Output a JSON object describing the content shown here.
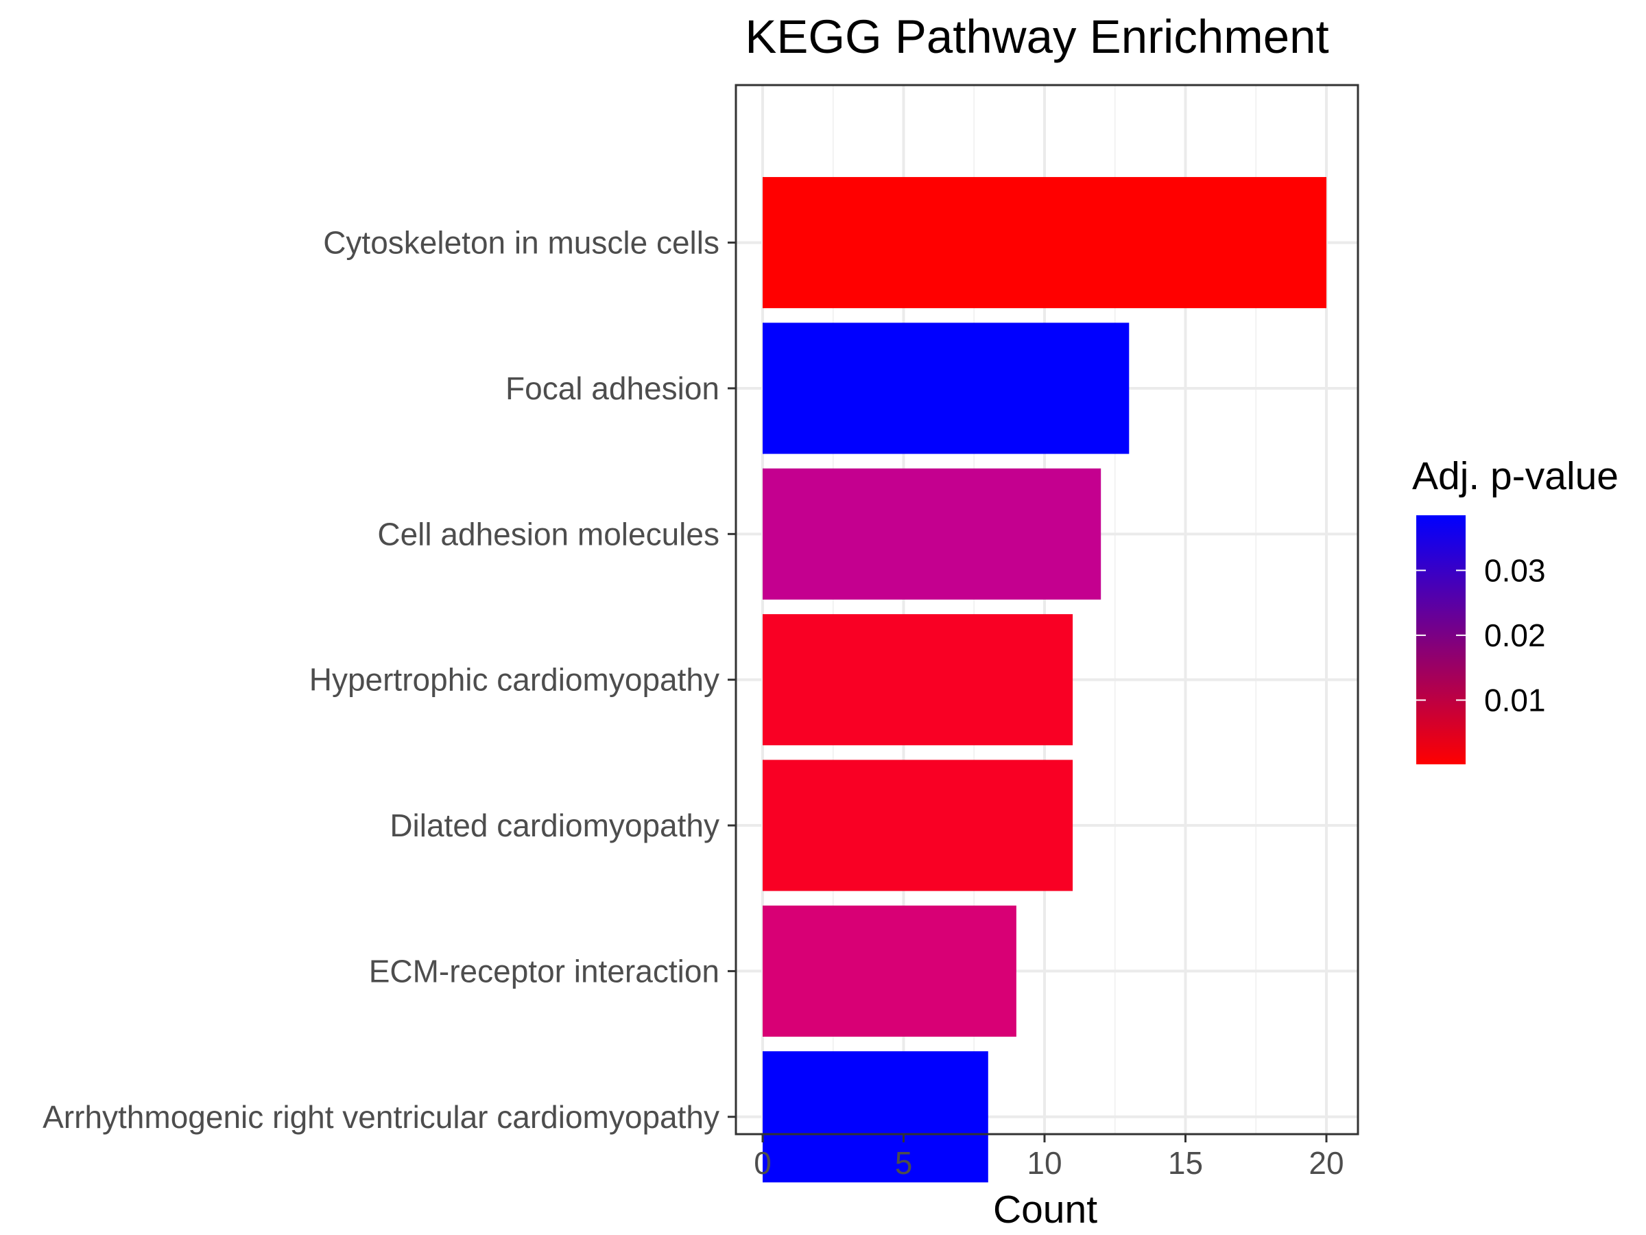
{
  "chart_data": {
    "type": "bar",
    "orientation": "horizontal",
    "title": "KEGG Pathway Enrichment",
    "xlabel": "Count",
    "ylabel": "",
    "xlim": [
      0,
      21
    ],
    "x_ticks": [
      0,
      5,
      10,
      15,
      20
    ],
    "grid": true,
    "categories": [
      "Cytoskeleton in muscle cells",
      "Focal adhesion",
      "Cell adhesion molecules",
      "Hypertrophic cardiomyopathy",
      "Dilated cardiomyopathy",
      "ECM-receptor interaction",
      "Arrhythmogenic right ventricular cardiomyopathy"
    ],
    "values": [
      20,
      13,
      12,
      11,
      11,
      9,
      8
    ],
    "p_adjust": [
      0.0001,
      0.038,
      0.026,
      0.005,
      0.005,
      0.019,
      0.038
    ],
    "colors": [
      "#ff0000",
      "#0000ff",
      "#c4008f",
      "#f90024",
      "#f90024",
      "#d80075",
      "#0000ff"
    ],
    "legend": {
      "title": "Adj. p-value",
      "position": "right",
      "low_color": "#ff0000",
      "high_color": "#0000ff",
      "range": [
        0.0001,
        0.0385
      ],
      "ticks": [
        0.01,
        0.02,
        0.03
      ],
      "tick_labels": [
        "0.01",
        "0.02",
        "0.03"
      ]
    }
  }
}
